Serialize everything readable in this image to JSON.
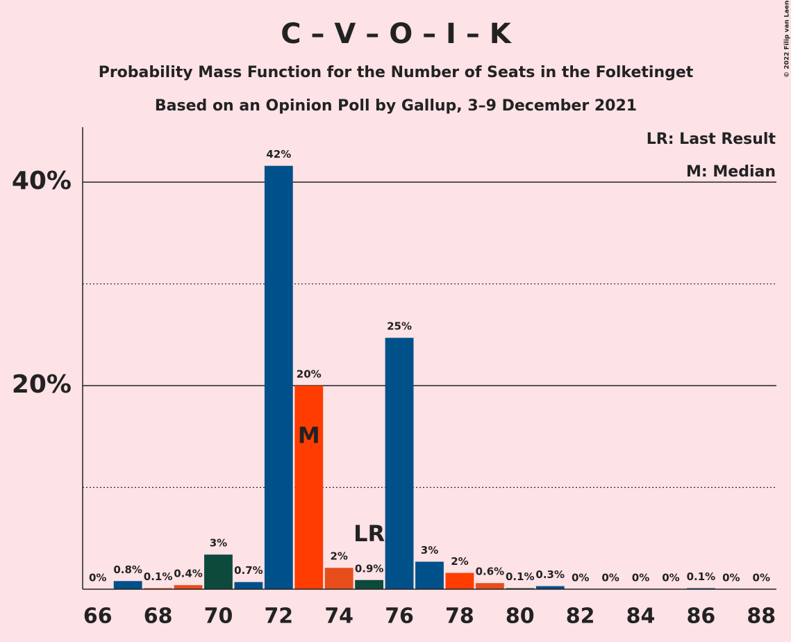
{
  "chart_data": {
    "type": "bar",
    "title": "C – V – O – I – K",
    "subtitle": "Probability Mass Function for the Number of Seats in the Folketinget",
    "subtitle2": "Based on an Opinion Poll by Gallup, 3–9 December 2021",
    "copyright": "© 2022 Filip van Laenen",
    "x": [
      66,
      67,
      68,
      69,
      70,
      71,
      72,
      73,
      74,
      75,
      76,
      77,
      78,
      79,
      80,
      81,
      82,
      83,
      84,
      85,
      86,
      87,
      88
    ],
    "values": [
      0,
      0.8,
      0.1,
      0.4,
      3.4,
      0.7,
      41.6,
      20,
      2.1,
      0.9,
      24.7,
      2.7,
      1.6,
      0.6,
      0.1,
      0.3,
      0,
      0,
      0,
      0,
      0.1,
      0,
      0
    ],
    "value_labels": [
      "0%",
      "0.8%",
      "0.1%",
      "0.4%",
      "3%",
      "0.7%",
      "42%",
      "20%",
      "2%",
      "0.9%",
      "25%",
      "3%",
      "2%",
      "0.6%",
      "0.1%",
      "0.3%",
      "0%",
      "0%",
      "0%",
      "0%",
      "0.1%",
      "0%",
      "0%"
    ],
    "colors": [
      "#00508a",
      "#00508a",
      "#ff3d00",
      "#e84d1c",
      "#0d4a3c",
      "#00508a",
      "#00508a",
      "#ff3d00",
      "#e84d1c",
      "#0d4a3c",
      "#00508a",
      "#00508a",
      "#ff3d00",
      "#e84d1c",
      "#0d4a3c",
      "#00508a",
      "#00508a",
      "#ff3d00",
      "#e84d1c",
      "#0d4a3c",
      "#00508a",
      "#00508a",
      "#ff3d00"
    ],
    "xlim": [
      65.5,
      88.5
    ],
    "xticks": [
      66,
      68,
      70,
      72,
      74,
      76,
      78,
      80,
      82,
      84,
      86,
      88
    ],
    "ylim": [
      0,
      45.4
    ],
    "yticks": [
      {
        "value": 20,
        "label": "20%"
      },
      {
        "value": 40,
        "label": "40%"
      }
    ],
    "minor_yticks": [
      10,
      30
    ],
    "annotations": [
      {
        "text": "LR",
        "x": 75
      },
      {
        "text": "M",
        "x": 73
      }
    ],
    "legend": [
      "LR: Last Result",
      "M: Median"
    ]
  }
}
